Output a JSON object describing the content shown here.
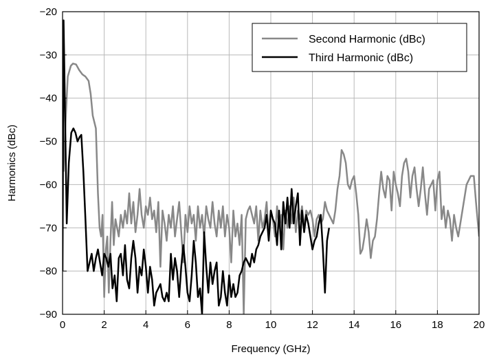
{
  "chart_data": {
    "type": "line",
    "xlabel": "Frequency (GHz)",
    "ylabel": "Harmonics (dBc)",
    "xlim": [
      0,
      20
    ],
    "ylim": [
      -90,
      -20
    ],
    "xticks": [
      0,
      2,
      4,
      6,
      8,
      10,
      12,
      14,
      16,
      18,
      20
    ],
    "yticks": [
      -90,
      -80,
      -70,
      -60,
      -50,
      -40,
      -30,
      -20
    ],
    "grid": true,
    "legend_position": "top-right",
    "series": [
      {
        "name": "Second Harmonic (dBc)",
        "color": "#888888",
        "points": [
          [
            0.05,
            -57
          ],
          [
            0.15,
            -45
          ],
          [
            0.25,
            -35
          ],
          [
            0.4,
            -32.5
          ],
          [
            0.5,
            -32
          ],
          [
            0.65,
            -32.2
          ],
          [
            0.8,
            -33.5
          ],
          [
            0.95,
            -34.5
          ],
          [
            1.1,
            -35
          ],
          [
            1.25,
            -36
          ],
          [
            1.35,
            -39
          ],
          [
            1.45,
            -44
          ],
          [
            1.6,
            -47
          ],
          [
            1.7,
            -62
          ],
          [
            1.78,
            -70
          ],
          [
            1.85,
            -72
          ],
          [
            1.92,
            -67
          ],
          [
            2.0,
            -86
          ],
          [
            2.08,
            -75
          ],
          [
            2.15,
            -72
          ],
          [
            2.22,
            -85
          ],
          [
            2.3,
            -73
          ],
          [
            2.38,
            -64
          ],
          [
            2.46,
            -74
          ],
          [
            2.54,
            -68
          ],
          [
            2.62,
            -70
          ],
          [
            2.7,
            -72
          ],
          [
            2.8,
            -67
          ],
          [
            2.9,
            -70
          ],
          [
            3.0,
            -66
          ],
          [
            3.1,
            -69
          ],
          [
            3.2,
            -62
          ],
          [
            3.3,
            -69
          ],
          [
            3.4,
            -64
          ],
          [
            3.5,
            -71
          ],
          [
            3.6,
            -67
          ],
          [
            3.7,
            -61
          ],
          [
            3.8,
            -67
          ],
          [
            3.9,
            -70
          ],
          [
            4.0,
            -65
          ],
          [
            4.1,
            -67
          ],
          [
            4.2,
            -63
          ],
          [
            4.3,
            -68
          ],
          [
            4.4,
            -66
          ],
          [
            4.5,
            -71
          ],
          [
            4.6,
            -64
          ],
          [
            4.7,
            -79
          ],
          [
            4.8,
            -66
          ],
          [
            4.9,
            -69
          ],
          [
            5.0,
            -73
          ],
          [
            5.1,
            -67
          ],
          [
            5.2,
            -70
          ],
          [
            5.3,
            -65
          ],
          [
            5.4,
            -72
          ],
          [
            5.5,
            -68
          ],
          [
            5.6,
            -64
          ],
          [
            5.7,
            -71
          ],
          [
            5.8,
            -78
          ],
          [
            5.9,
            -67
          ],
          [
            6.0,
            -71
          ],
          [
            6.1,
            -65
          ],
          [
            6.2,
            -69
          ],
          [
            6.3,
            -67
          ],
          [
            6.4,
            -73
          ],
          [
            6.5,
            -65
          ],
          [
            6.6,
            -70
          ],
          [
            6.7,
            -67
          ],
          [
            6.8,
            -72
          ],
          [
            6.9,
            -65
          ],
          [
            7.0,
            -68
          ],
          [
            7.1,
            -70
          ],
          [
            7.2,
            -64
          ],
          [
            7.3,
            -69
          ],
          [
            7.4,
            -72
          ],
          [
            7.5,
            -66
          ],
          [
            7.6,
            -70
          ],
          [
            7.7,
            -65
          ],
          [
            7.8,
            -72
          ],
          [
            7.9,
            -67
          ],
          [
            8.0,
            -70
          ],
          [
            8.1,
            -78
          ],
          [
            8.2,
            -66
          ],
          [
            8.3,
            -72
          ],
          [
            8.4,
            -69
          ],
          [
            8.5,
            -74
          ],
          [
            8.6,
            -67
          ],
          [
            8.7,
            -90
          ],
          [
            8.8,
            -68
          ],
          [
            8.9,
            -66
          ],
          [
            9.0,
            -65
          ],
          [
            9.1,
            -67
          ],
          [
            9.2,
            -69
          ],
          [
            9.3,
            -65
          ],
          [
            9.4,
            -73
          ],
          [
            9.5,
            -66
          ],
          [
            9.6,
            -70
          ],
          [
            9.7,
            -68
          ],
          [
            9.8,
            -64
          ],
          [
            9.9,
            -72
          ],
          [
            10.0,
            -66
          ],
          [
            10.1,
            -68
          ],
          [
            10.2,
            -72
          ],
          [
            10.3,
            -65
          ],
          [
            10.4,
            -70
          ],
          [
            10.5,
            -67
          ],
          [
            10.6,
            -75
          ],
          [
            10.7,
            -66
          ],
          [
            10.8,
            -70
          ],
          [
            10.9,
            -65
          ],
          [
            11.0,
            -69
          ],
          [
            11.1,
            -63
          ],
          [
            11.2,
            -71
          ],
          [
            11.3,
            -66
          ],
          [
            11.4,
            -68
          ],
          [
            11.5,
            -65
          ],
          [
            11.6,
            -70
          ],
          [
            11.7,
            -66
          ],
          [
            11.8,
            -67
          ],
          [
            11.9,
            -66
          ],
          [
            12.0,
            -68
          ],
          [
            12.1,
            -72
          ],
          [
            12.2,
            -68
          ],
          [
            12.3,
            -67
          ],
          [
            12.4,
            -69
          ],
          [
            12.5,
            -68
          ],
          [
            12.6,
            -64
          ],
          [
            12.7,
            -66
          ],
          [
            12.8,
            -67
          ],
          [
            12.9,
            -68
          ],
          [
            13.0,
            -69
          ],
          [
            13.1,
            -66
          ],
          [
            13.2,
            -61
          ],
          [
            13.3,
            -58
          ],
          [
            13.4,
            -52
          ],
          [
            13.5,
            -53
          ],
          [
            13.6,
            -55
          ],
          [
            13.7,
            -60
          ],
          [
            13.8,
            -61
          ],
          [
            13.9,
            -59
          ],
          [
            14.0,
            -58
          ],
          [
            14.1,
            -62
          ],
          [
            14.2,
            -67
          ],
          [
            14.3,
            -76
          ],
          [
            14.4,
            -75
          ],
          [
            14.5,
            -72
          ],
          [
            14.6,
            -68
          ],
          [
            14.7,
            -71
          ],
          [
            14.8,
            -77
          ],
          [
            14.9,
            -73
          ],
          [
            15.0,
            -72
          ],
          [
            15.1,
            -68
          ],
          [
            15.2,
            -62
          ],
          [
            15.3,
            -57
          ],
          [
            15.4,
            -61
          ],
          [
            15.5,
            -63
          ],
          [
            15.6,
            -58
          ],
          [
            15.7,
            -59
          ],
          [
            15.8,
            -66
          ],
          [
            15.9,
            -57
          ],
          [
            16.0,
            -60
          ],
          [
            16.1,
            -62
          ],
          [
            16.2,
            -65
          ],
          [
            16.3,
            -58
          ],
          [
            16.4,
            -55
          ],
          [
            16.5,
            -54
          ],
          [
            16.6,
            -57
          ],
          [
            16.7,
            -63
          ],
          [
            16.8,
            -58
          ],
          [
            16.9,
            -56
          ],
          [
            17.0,
            -61
          ],
          [
            17.1,
            -65
          ],
          [
            17.2,
            -61
          ],
          [
            17.3,
            -56
          ],
          [
            17.4,
            -62
          ],
          [
            17.5,
            -67
          ],
          [
            17.6,
            -61
          ],
          [
            17.7,
            -60
          ],
          [
            17.8,
            -59
          ],
          [
            17.9,
            -66
          ],
          [
            18.0,
            -59
          ],
          [
            18.1,
            -57
          ],
          [
            18.2,
            -68
          ],
          [
            18.3,
            -65
          ],
          [
            18.4,
            -70
          ],
          [
            18.5,
            -66
          ],
          [
            18.6,
            -68
          ],
          [
            18.7,
            -73
          ],
          [
            18.8,
            -67
          ],
          [
            18.9,
            -70
          ],
          [
            19.0,
            -72
          ],
          [
            19.2,
            -66
          ],
          [
            19.4,
            -60
          ],
          [
            19.6,
            -58
          ],
          [
            19.75,
            -58
          ],
          [
            19.85,
            -64
          ],
          [
            20.0,
            -72
          ]
        ]
      },
      {
        "name": "Third Harmonic (dBc)",
        "color": "#000000",
        "points": [
          [
            0.0,
            -80
          ],
          [
            0.05,
            -22
          ],
          [
            0.1,
            -37
          ],
          [
            0.2,
            -69
          ],
          [
            0.3,
            -55
          ],
          [
            0.42,
            -48
          ],
          [
            0.52,
            -47
          ],
          [
            0.62,
            -48
          ],
          [
            0.72,
            -50
          ],
          [
            0.82,
            -49
          ],
          [
            0.9,
            -48.5
          ],
          [
            1.0,
            -57
          ],
          [
            1.1,
            -68
          ],
          [
            1.2,
            -80
          ],
          [
            1.3,
            -78
          ],
          [
            1.4,
            -76
          ],
          [
            1.5,
            -80
          ],
          [
            1.6,
            -77
          ],
          [
            1.7,
            -75
          ],
          [
            1.8,
            -78
          ],
          [
            1.9,
            -81
          ],
          [
            2.0,
            -76
          ],
          [
            2.1,
            -77
          ],
          [
            2.2,
            -79
          ],
          [
            2.3,
            -76
          ],
          [
            2.4,
            -84
          ],
          [
            2.5,
            -81
          ],
          [
            2.6,
            -87
          ],
          [
            2.7,
            -77
          ],
          [
            2.8,
            -76
          ],
          [
            2.9,
            -81
          ],
          [
            3.0,
            -74
          ],
          [
            3.1,
            -82
          ],
          [
            3.2,
            -84
          ],
          [
            3.3,
            -77
          ],
          [
            3.4,
            -73
          ],
          [
            3.5,
            -77
          ],
          [
            3.6,
            -85
          ],
          [
            3.7,
            -79
          ],
          [
            3.8,
            -81
          ],
          [
            3.9,
            -75
          ],
          [
            4.0,
            -79
          ],
          [
            4.1,
            -85
          ],
          [
            4.2,
            -79
          ],
          [
            4.3,
            -82
          ],
          [
            4.4,
            -88
          ],
          [
            4.5,
            -85
          ],
          [
            4.6,
            -84
          ],
          [
            4.7,
            -83
          ],
          [
            4.8,
            -86
          ],
          [
            4.9,
            -87
          ],
          [
            5.0,
            -85
          ],
          [
            5.1,
            -87
          ],
          [
            5.2,
            -76
          ],
          [
            5.3,
            -82
          ],
          [
            5.4,
            -77
          ],
          [
            5.5,
            -80
          ],
          [
            5.6,
            -86
          ],
          [
            5.7,
            -79
          ],
          [
            5.8,
            -74
          ],
          [
            5.9,
            -79
          ],
          [
            6.0,
            -85
          ],
          [
            6.1,
            -87
          ],
          [
            6.2,
            -81
          ],
          [
            6.3,
            -73
          ],
          [
            6.4,
            -78
          ],
          [
            6.5,
            -86
          ],
          [
            6.6,
            -84
          ],
          [
            6.7,
            -90
          ],
          [
            6.8,
            -71
          ],
          [
            6.9,
            -79
          ],
          [
            7.0,
            -85
          ],
          [
            7.1,
            -78
          ],
          [
            7.2,
            -83
          ],
          [
            7.3,
            -80
          ],
          [
            7.4,
            -78
          ],
          [
            7.5,
            -88
          ],
          [
            7.6,
            -86
          ],
          [
            7.7,
            -80
          ],
          [
            7.8,
            -85
          ],
          [
            7.9,
            -88
          ],
          [
            8.0,
            -81
          ],
          [
            8.1,
            -86
          ],
          [
            8.2,
            -83
          ],
          [
            8.3,
            -86
          ],
          [
            8.4,
            -85
          ],
          [
            8.5,
            -81
          ],
          [
            8.6,
            -80
          ],
          [
            8.7,
            -78
          ],
          [
            8.8,
            -77
          ],
          [
            8.9,
            -78
          ],
          [
            9.0,
            -79
          ],
          [
            9.1,
            -76
          ],
          [
            9.2,
            -78
          ],
          [
            9.3,
            -75
          ],
          [
            9.4,
            -74
          ],
          [
            9.5,
            -72
          ],
          [
            9.6,
            -71
          ],
          [
            9.7,
            -70
          ],
          [
            9.8,
            -67
          ],
          [
            9.9,
            -73
          ],
          [
            10.0,
            -66
          ],
          [
            10.1,
            -68
          ],
          [
            10.2,
            -69
          ],
          [
            10.3,
            -74
          ],
          [
            10.4,
            -66
          ],
          [
            10.5,
            -75
          ],
          [
            10.6,
            -64
          ],
          [
            10.7,
            -69
          ],
          [
            10.8,
            -63
          ],
          [
            10.9,
            -70
          ],
          [
            11.0,
            -61
          ],
          [
            11.1,
            -69
          ],
          [
            11.2,
            -65
          ],
          [
            11.3,
            -62
          ],
          [
            11.4,
            -74
          ],
          [
            11.5,
            -66
          ],
          [
            11.6,
            -71
          ],
          [
            11.7,
            -67
          ],
          [
            11.8,
            -69
          ],
          [
            11.9,
            -72
          ],
          [
            12.0,
            -75
          ],
          [
            12.1,
            -73
          ],
          [
            12.2,
            -72
          ],
          [
            12.3,
            -69
          ],
          [
            12.4,
            -67
          ],
          [
            12.5,
            -75
          ],
          [
            12.6,
            -85
          ],
          [
            12.7,
            -73
          ],
          [
            12.8,
            -70
          ]
        ]
      }
    ]
  }
}
